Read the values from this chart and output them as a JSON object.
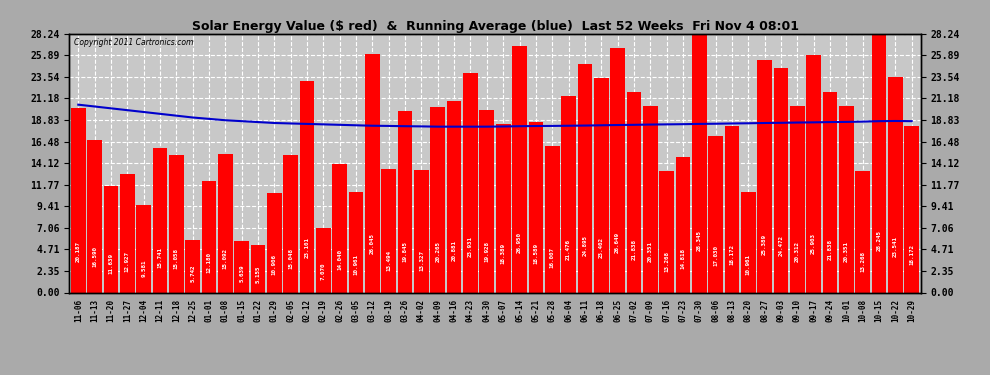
{
  "title": "Solar Energy Value ($ red)  &  Running Average (blue)  Last 52 Weeks  Fri Nov 4 08:01",
  "copyright": "Copyright 2011 Cartronics.com",
  "bar_color": "#ff0000",
  "avg_line_color": "#0000cc",
  "background_color": "#aaaaaa",
  "plot_bg_color": "#c8c8c8",
  "grid_color": "#ffffff",
  "ylim": [
    0.0,
    28.24
  ],
  "yticks": [
    0.0,
    2.35,
    4.71,
    7.06,
    9.41,
    11.77,
    14.12,
    16.48,
    18.83,
    21.18,
    23.54,
    25.89,
    28.24
  ],
  "labels": [
    "11-06",
    "11-13",
    "11-20",
    "11-27",
    "12-04",
    "12-11",
    "12-18",
    "12-25",
    "01-01",
    "01-08",
    "01-15",
    "01-22",
    "01-29",
    "02-05",
    "02-12",
    "02-19",
    "02-26",
    "03-05",
    "03-12",
    "03-19",
    "03-26",
    "04-02",
    "04-09",
    "04-16",
    "04-23",
    "04-30",
    "05-07",
    "05-14",
    "05-21",
    "05-28",
    "06-04",
    "06-11",
    "06-18",
    "06-25",
    "07-02",
    "07-09",
    "07-16",
    "07-23",
    "07-30",
    "08-06",
    "08-13",
    "08-20",
    "08-27",
    "09-03",
    "09-10",
    "09-17",
    "09-24",
    "10-01",
    "10-08",
    "10-15",
    "10-22",
    "10-29"
  ],
  "values": [
    20.187,
    16.59,
    11.639,
    12.927,
    9.581,
    15.741,
    15.058,
    5.742,
    12.18,
    15.092,
    5.639,
    5.155,
    10.906,
    15.048,
    23.101,
    7.07,
    14.04,
    10.961,
    26.045,
    13.494,
    19.845,
    13.327,
    20.265,
    20.881,
    23.931,
    19.928,
    18.389,
    26.95,
    18.589,
    16.007,
    21.476,
    24.895,
    23.402,
    26.649,
    21.838,
    20.351,
    13.268,
    14.818,
    28.345,
    17.03,
    18.172,
    10.961,
    25.389,
    24.472,
    20.312,
    25.903,
    21.838,
    20.351,
    13.268,
    28.245,
    23.541,
    18.172
  ],
  "running_avg": [
    20.5,
    20.3,
    20.1,
    19.9,
    19.7,
    19.5,
    19.3,
    19.1,
    18.95,
    18.8,
    18.7,
    18.6,
    18.5,
    18.45,
    18.4,
    18.35,
    18.3,
    18.25,
    18.2,
    18.18,
    18.15,
    18.13,
    18.1,
    18.1,
    18.1,
    18.1,
    18.12,
    18.15,
    18.17,
    18.18,
    18.2,
    18.22,
    18.25,
    18.28,
    18.3,
    18.33,
    18.35,
    18.37,
    18.4,
    18.42,
    18.45,
    18.47,
    18.5,
    18.52,
    18.55,
    18.57,
    18.6,
    18.62,
    18.65,
    18.7,
    18.72,
    18.7
  ]
}
